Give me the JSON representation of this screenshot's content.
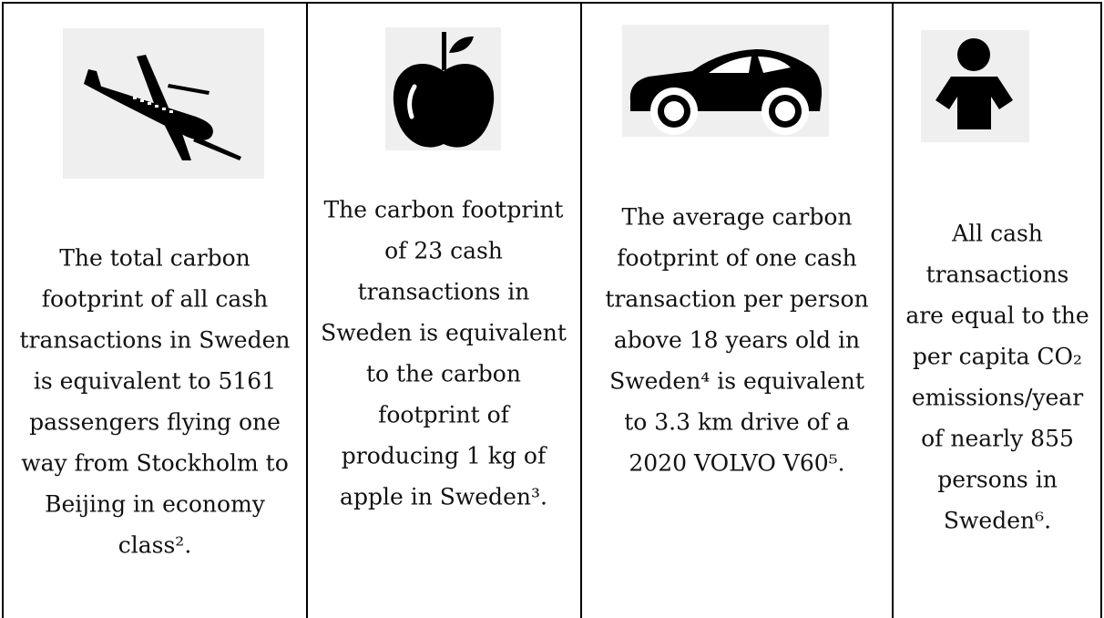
{
  "cells": [
    {
      "lines": [
        "The total carbon",
        "footprint of all cash",
        "transactions in Sweden",
        "is equivalent to 5161",
        "passengers flying one",
        "way from Stockholm to",
        "Beijing in economy",
        "class²."
      ]
    },
    {
      "lines": [
        "The carbon footprint",
        "of 23 cash",
        "transactions in",
        "Sweden is equivalent",
        "to the carbon",
        "footprint of",
        "producing 1 kg of",
        "apple in Sweden³."
      ]
    },
    {
      "lines": [
        "The average carbon",
        "footprint of one cash",
        "transaction per person",
        "above 18 years old in",
        "Sweden⁴ is equivalent",
        "to 3.3 km drive of a",
        "2020 VOLVO V60⁵."
      ]
    },
    {
      "lines": [
        "All cash",
        "transactions",
        "are equal to the",
        "per capita CO₂",
        "emissions/year",
        "of nearly 855",
        "persons in",
        "Sweden⁶."
      ]
    }
  ]
}
